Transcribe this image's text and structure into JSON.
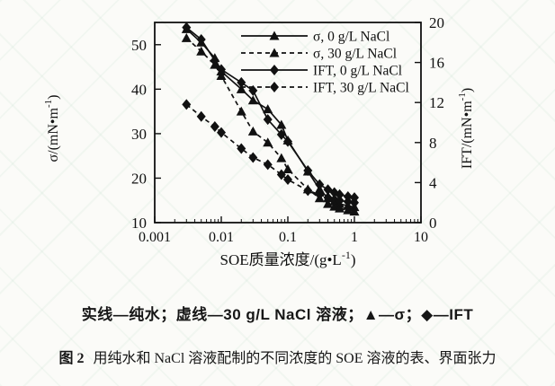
{
  "figure": {
    "caption_note": "实线—纯水；虚线—30 g/L NaCl 溶液；▲—σ；◆—IFT",
    "caption_label": "图 2",
    "caption_text": "用纯水和 NaCl 溶液配制的不同浓度的 SOE 溶液的表、界面张力"
  },
  "chart_data": {
    "type": "line",
    "x_scale": "log",
    "x_range": [
      0.001,
      10
    ],
    "x_ticks": [
      0.001,
      0.01,
      0.1,
      1,
      10
    ],
    "x_tick_labels": [
      "0.001",
      "0.01",
      "0.1",
      "1",
      "10"
    ],
    "left_ticks": [
      10,
      20,
      30,
      40,
      50
    ],
    "left_range": [
      10,
      55
    ],
    "right_ticks": [
      0,
      4,
      8,
      12,
      16,
      20
    ],
    "right_range": [
      0,
      20
    ],
    "xlabel": {
      "main": "SOE质量浓度/(g•L",
      "sup": "-1",
      "close": ")"
    },
    "ylabel_left": {
      "main": "σ/(mN•m",
      "sup": "-1",
      "close": ")"
    },
    "ylabel_right": {
      "main": "IFT/(mN•m",
      "sup": "-1",
      "close": ")"
    },
    "legend_position": "top-right",
    "color": "#111111",
    "x": [
      0.003,
      0.005,
      0.008,
      0.01,
      0.02,
      0.03,
      0.05,
      0.08,
      0.1,
      0.2,
      0.3,
      0.4,
      0.5,
      0.6,
      0.8,
      1
    ],
    "series": [
      {
        "name": "σ, 0 g/L NaCl",
        "axis": "left",
        "marker": "triangle",
        "line": "solid",
        "values": [
          53.5,
          50.5,
          47,
          44,
          40,
          37.5,
          35.5,
          32,
          28.5,
          21.5,
          17.5,
          15.5,
          14.8,
          14.2,
          13.8,
          13.5
        ]
      },
      {
        "name": "σ, 30 g/L NaCl",
        "axis": "left",
        "marker": "triangle",
        "line": "dashed",
        "values": [
          51.5,
          48.5,
          45.5,
          43,
          35,
          30.5,
          28,
          24.5,
          22,
          17.5,
          15.5,
          14.2,
          13.6,
          13.2,
          12.8,
          12.5
        ]
      },
      {
        "name": "IFT, 0 g/L NaCl",
        "axis": "right",
        "marker": "diamond",
        "line": "solid",
        "values": [
          19.5,
          18.3,
          16.2,
          15.3,
          14,
          13.2,
          10.3,
          8.8,
          8.1,
          5.2,
          3.8,
          3.3,
          3.0,
          2.8,
          2.6,
          2.5
        ]
      },
      {
        "name": "IFT, 30 g/L NaCl",
        "axis": "right",
        "marker": "diamond",
        "line": "dashed",
        "values": [
          11.8,
          10.6,
          9.6,
          9.0,
          7.4,
          6.5,
          5.8,
          4.8,
          4.3,
          3.2,
          2.8,
          2.5,
          2.3,
          2.2,
          2.1,
          2.0
        ]
      }
    ]
  }
}
